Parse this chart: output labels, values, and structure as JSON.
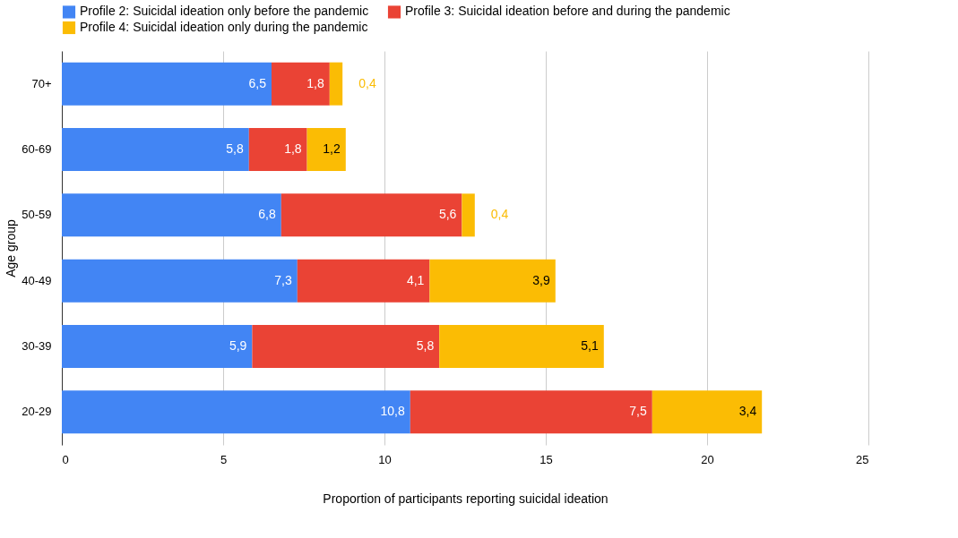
{
  "chart_data": {
    "type": "bar",
    "orientation": "horizontal",
    "stacked": true,
    "categories": [
      "70+",
      "60-69",
      "50-59",
      "40-49",
      "30-39",
      "20-29"
    ],
    "series": [
      {
        "name": "Profile 2: Suicidal ideation only before the pandemic",
        "color": "#4285f4",
        "values": [
          6.5,
          5.8,
          6.8,
          7.3,
          5.9,
          10.8
        ],
        "value_labels": [
          "6,5",
          "5,8",
          "6,8",
          "7,3",
          "5,9",
          "10,8"
        ]
      },
      {
        "name": "Profile 3: Suicidal ideation before and during the pandemic",
        "color": "#ea4335",
        "values": [
          1.8,
          1.8,
          5.6,
          4.1,
          5.8,
          7.5
        ],
        "value_labels": [
          "1,8",
          "1,8",
          "5,6",
          "4,1",
          "5,8",
          "7,5"
        ]
      },
      {
        "name": "Profile 4: Suicidal ideation only during the pandemic",
        "color": "#fbbc04",
        "values": [
          0.4,
          1.2,
          0.4,
          3.9,
          5.1,
          3.4
        ],
        "value_labels": [
          "0,4",
          "1,2",
          "0,4",
          "3,9",
          "5,1",
          "3,4"
        ]
      }
    ],
    "xlim": [
      0,
      25
    ],
    "xticks": [
      0,
      5,
      10,
      15,
      20,
      25
    ],
    "xlabel": "Proportion of participants reporting suicidal ideation",
    "ylabel": "Age group",
    "grid": "x",
    "legend": "top"
  }
}
